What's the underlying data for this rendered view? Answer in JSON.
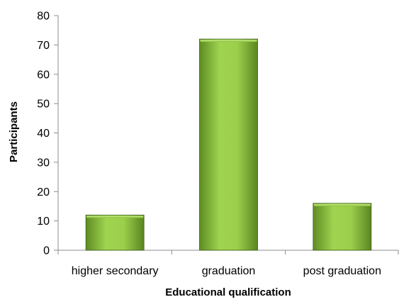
{
  "chart_data": {
    "type": "bar",
    "title": "",
    "xlabel": "Educational qualification",
    "ylabel": "Participants",
    "categories": [
      "higher secondary",
      "graduation",
      "post graduation"
    ],
    "values": [
      12,
      72,
      16
    ],
    "ylim": [
      0,
      80
    ],
    "yticks": [
      "0",
      "10",
      "20",
      "30",
      "40",
      "50",
      "60",
      "70",
      "80"
    ],
    "grid": false,
    "legend": "none",
    "colors": {
      "bar_light": "#a6d957",
      "bar_mid": "#8cbf3e",
      "bar_dark": "#4f7a1c",
      "bar_edge": "#3e5e14"
    }
  }
}
